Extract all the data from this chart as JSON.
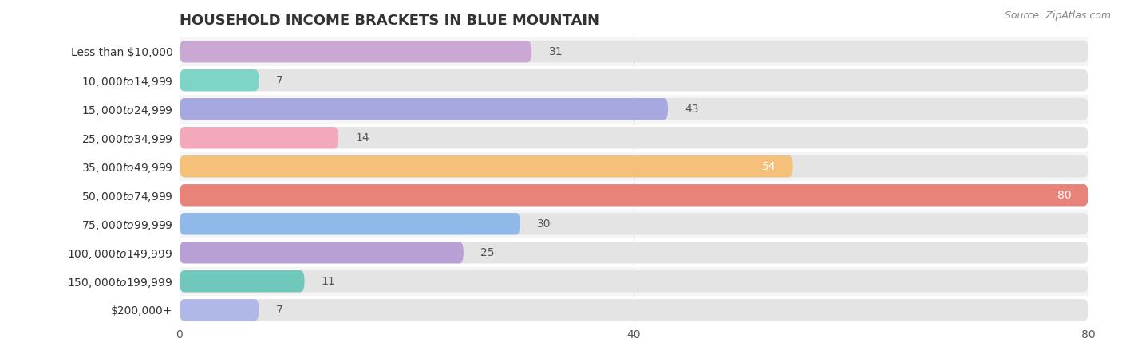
{
  "title": "HOUSEHOLD INCOME BRACKETS IN BLUE MOUNTAIN",
  "source": "Source: ZipAtlas.com",
  "categories": [
    "Less than $10,000",
    "$10,000 to $14,999",
    "$15,000 to $24,999",
    "$25,000 to $34,999",
    "$35,000 to $49,999",
    "$50,000 to $74,999",
    "$75,000 to $99,999",
    "$100,000 to $149,999",
    "$150,000 to $199,999",
    "$200,000+"
  ],
  "values": [
    31,
    7,
    43,
    14,
    54,
    80,
    30,
    25,
    11,
    7
  ],
  "bar_colors": [
    "#c9a8d4",
    "#7fd4c8",
    "#a8a8e0",
    "#f4a8bc",
    "#f5c07a",
    "#e8837a",
    "#90b8e8",
    "#b8a0d4",
    "#70c8bc",
    "#b0b8e8"
  ],
  "xlim": [
    0,
    80
  ],
  "xticks": [
    0,
    40,
    80
  ],
  "background_color": "#ffffff",
  "row_bg_even": "#f5f5f5",
  "row_bg_odd": "#ffffff",
  "bar_background_color": "#e4e4e4",
  "title_fontsize": 13,
  "tick_fontsize": 10,
  "label_fontsize": 10,
  "value_fontsize": 10,
  "source_fontsize": 9
}
